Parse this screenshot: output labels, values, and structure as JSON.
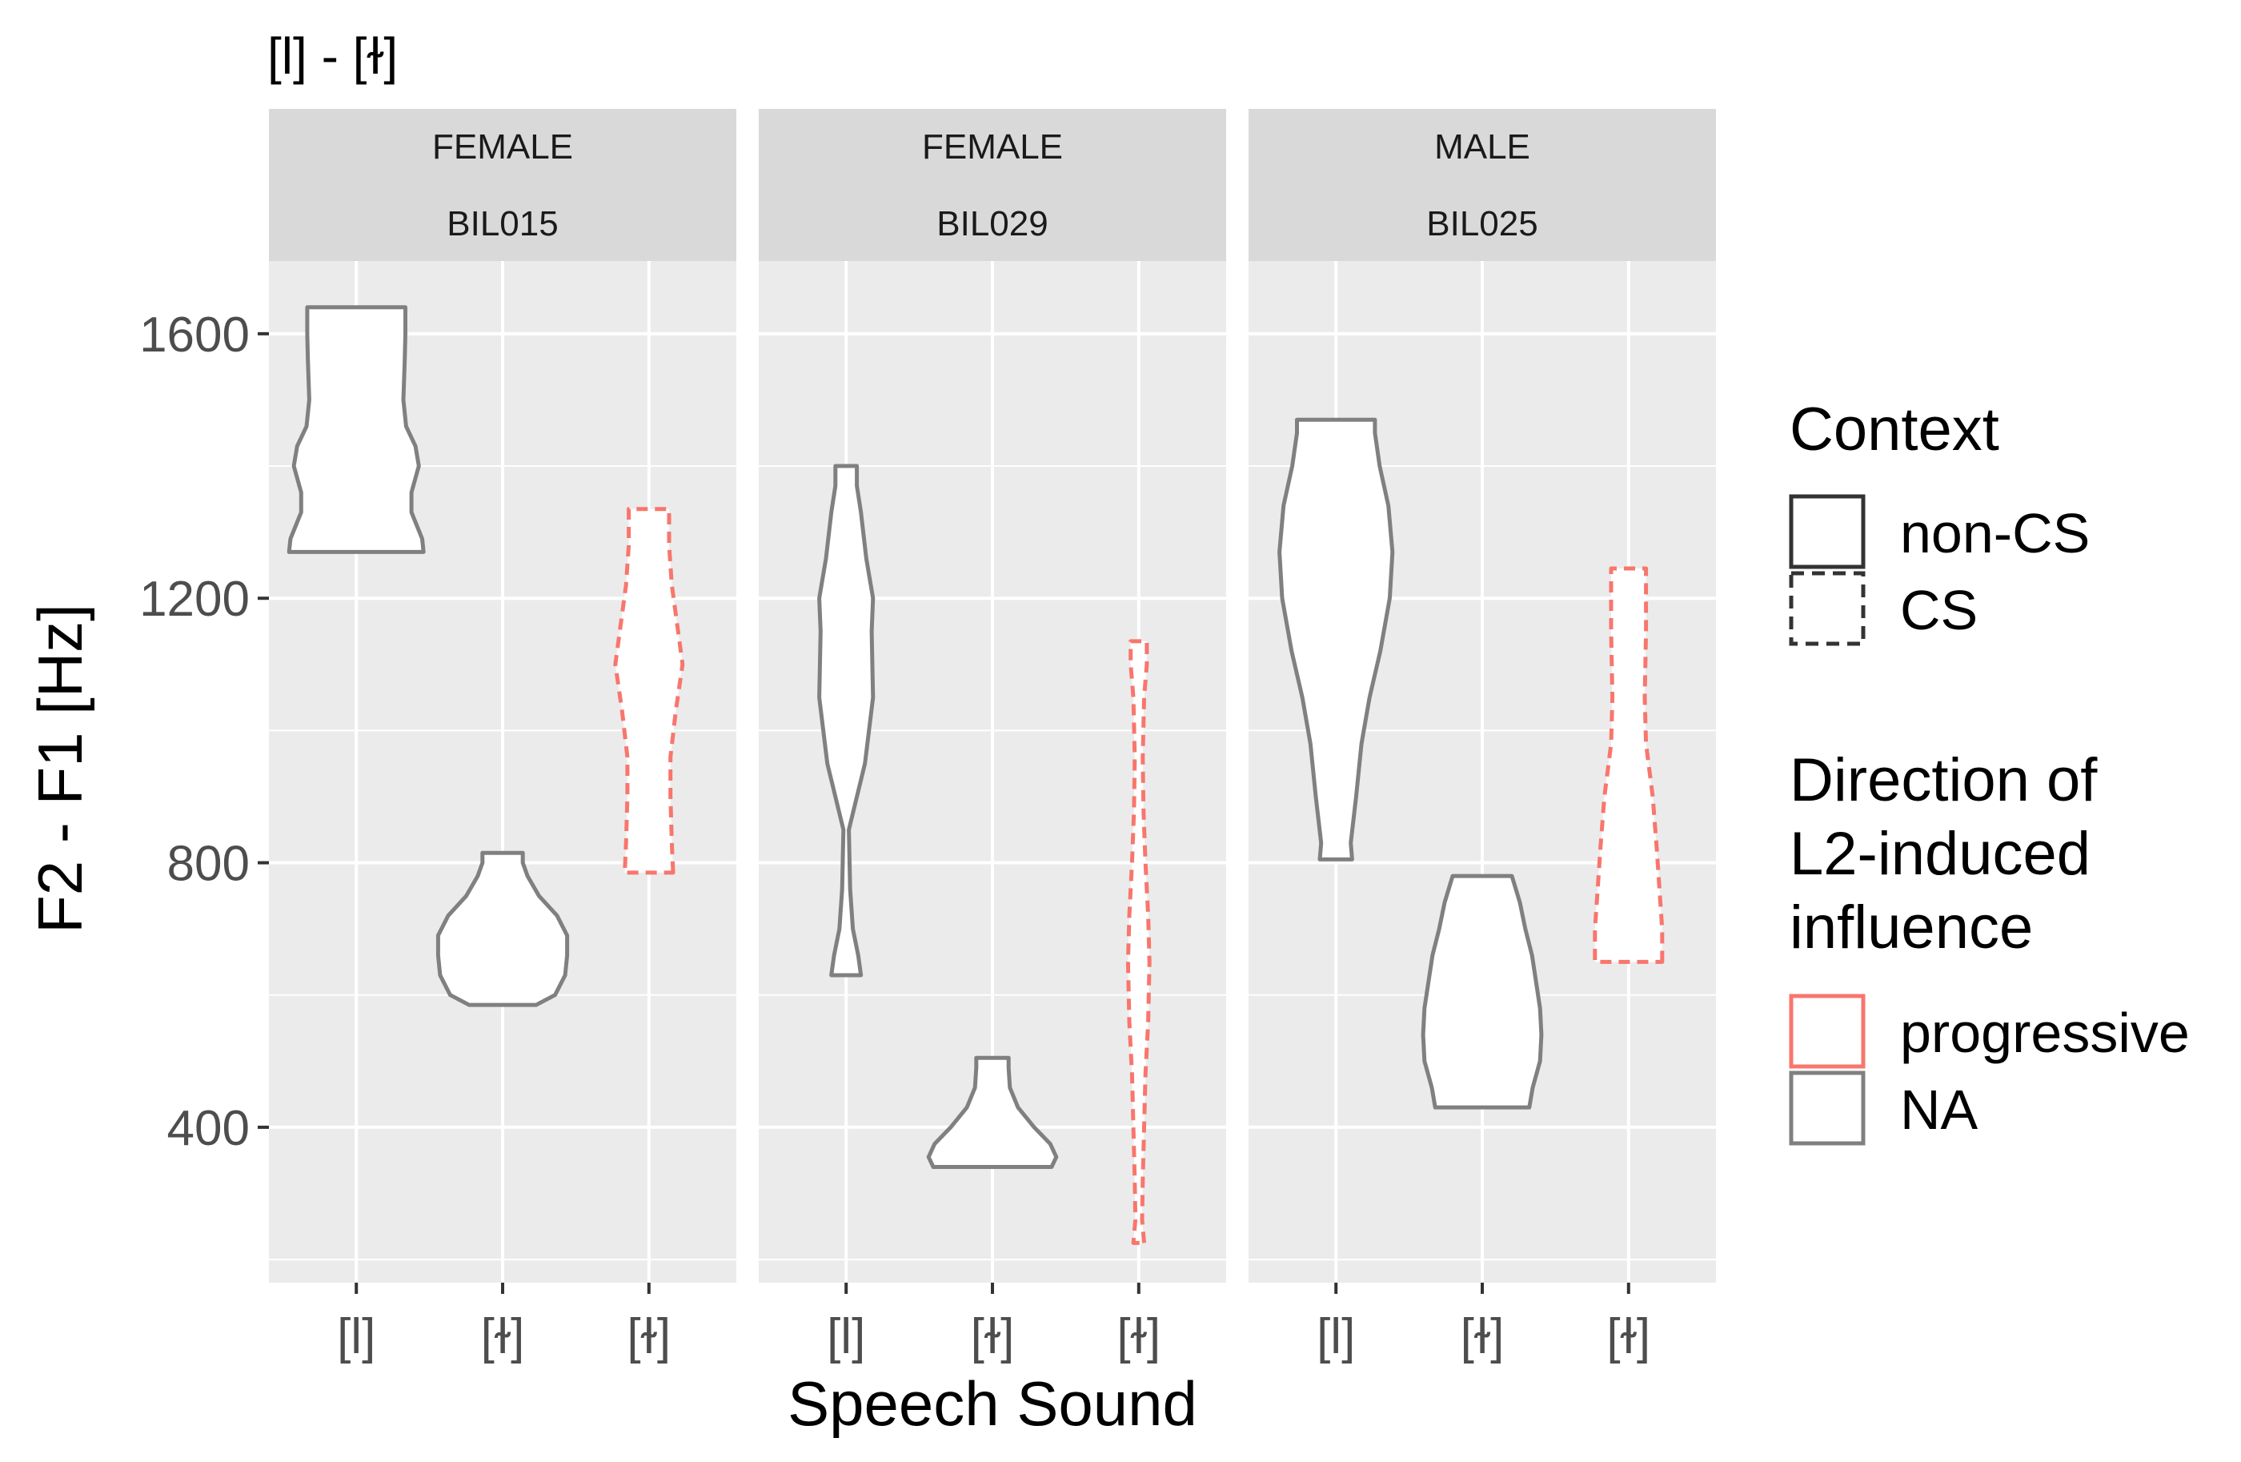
{
  "chart_data": {
    "type": "violin",
    "title": "[l] - [ɫ]",
    "xlabel": "Speech Sound",
    "ylabel": "F2 - F1 [Hz]",
    "ylim": [
      165,
      1710
    ],
    "yticks": [
      400,
      800,
      1200,
      1600
    ],
    "categories": [
      "[l]",
      "[ɫ]",
      "[ɫ]"
    ],
    "legend": {
      "context_title": "Context",
      "context": [
        {
          "label": "non-CS",
          "dash": "solid"
        },
        {
          "label": "CS",
          "dash": "dashed"
        }
      ],
      "direction_title": [
        "Direction of",
        "L2-induced",
        "influence"
      ],
      "direction": [
        {
          "label": "progressive",
          "color": "#F8766D"
        },
        {
          "label": "NA",
          "color": "#808080"
        }
      ]
    },
    "panels": [
      {
        "sex": "FEMALE",
        "speaker": "BIL015",
        "violins": [
          {
            "slot": 0,
            "context": "non-CS",
            "direction": "NA",
            "min": 1270,
            "max": 1640,
            "profile": [
              [
                1270,
                1.0
              ],
              [
                1290,
                0.98
              ],
              [
                1330,
                0.82
              ],
              [
                1360,
                0.82
              ],
              [
                1400,
                0.93
              ],
              [
                1430,
                0.88
              ],
              [
                1460,
                0.74
              ],
              [
                1500,
                0.7
              ],
              [
                1560,
                0.72
              ],
              [
                1600,
                0.73
              ],
              [
                1640,
                0.73
              ]
            ]
          },
          {
            "slot": 1,
            "context": "non-CS",
            "direction": "NA",
            "min": 585,
            "max": 815,
            "profile": [
              [
                585,
                0.5
              ],
              [
                600,
                0.78
              ],
              [
                630,
                0.93
              ],
              [
                660,
                0.96
              ],
              [
                690,
                0.96
              ],
              [
                720,
                0.81
              ],
              [
                750,
                0.54
              ],
              [
                780,
                0.37
              ],
              [
                800,
                0.3
              ],
              [
                815,
                0.3
              ]
            ]
          },
          {
            "slot": 2,
            "context": "CS",
            "direction": "progressive",
            "min": 785,
            "max": 1335,
            "profile": [
              [
                785,
                0.36
              ],
              [
                830,
                0.34
              ],
              [
                900,
                0.32
              ],
              [
                960,
                0.32
              ],
              [
                1030,
                0.4
              ],
              [
                1100,
                0.5
              ],
              [
                1160,
                0.42
              ],
              [
                1220,
                0.34
              ],
              [
                1280,
                0.3
              ],
              [
                1335,
                0.3
              ]
            ]
          }
        ]
      },
      {
        "sex": "FEMALE",
        "speaker": "BIL029",
        "violins": [
          {
            "slot": 0,
            "context": "non-CS",
            "direction": "NA",
            "min": 630,
            "max": 1400,
            "profile": [
              [
                630,
                0.22
              ],
              [
                660,
                0.18
              ],
              [
                700,
                0.1
              ],
              [
                760,
                0.06
              ],
              [
                850,
                0.04
              ],
              [
                950,
                0.28
              ],
              [
                1050,
                0.4
              ],
              [
                1150,
                0.38
              ],
              [
                1200,
                0.4
              ],
              [
                1260,
                0.3
              ],
              [
                1330,
                0.22
              ],
              [
                1370,
                0.16
              ],
              [
                1400,
                0.16
              ]
            ]
          },
          {
            "slot": 1,
            "context": "non-CS",
            "direction": "NA",
            "min": 340,
            "max": 505,
            "profile": [
              [
                340,
                0.88
              ],
              [
                355,
                0.95
              ],
              [
                375,
                0.86
              ],
              [
                400,
                0.62
              ],
              [
                430,
                0.38
              ],
              [
                460,
                0.26
              ],
              [
                490,
                0.24
              ],
              [
                505,
                0.24
              ]
            ]
          },
          {
            "slot": 2,
            "context": "CS",
            "direction": "progressive",
            "min": 225,
            "max": 1135,
            "profile": [
              [
                225,
                0.08
              ],
              [
                260,
                0.05
              ],
              [
                320,
                0.06
              ],
              [
                400,
                0.08
              ],
              [
                480,
                0.1
              ],
              [
                560,
                0.14
              ],
              [
                650,
                0.16
              ],
              [
                720,
                0.14
              ],
              [
                800,
                0.1
              ],
              [
                880,
                0.07
              ],
              [
                960,
                0.06
              ],
              [
                1050,
                0.08
              ],
              [
                1100,
                0.12
              ],
              [
                1135,
                0.12
              ]
            ]
          }
        ]
      },
      {
        "sex": "MALE",
        "speaker": "BIL025",
        "violins": [
          {
            "slot": 0,
            "context": "non-CS",
            "direction": "NA",
            "min": 805,
            "max": 1470,
            "profile": [
              [
                805,
                0.24
              ],
              [
                830,
                0.22
              ],
              [
                900,
                0.3
              ],
              [
                980,
                0.38
              ],
              [
                1050,
                0.5
              ],
              [
                1120,
                0.66
              ],
              [
                1200,
                0.8
              ],
              [
                1270,
                0.84
              ],
              [
                1340,
                0.78
              ],
              [
                1400,
                0.65
              ],
              [
                1450,
                0.58
              ],
              [
                1470,
                0.58
              ]
            ]
          },
          {
            "slot": 1,
            "context": "non-CS",
            "direction": "NA",
            "min": 430,
            "max": 780,
            "profile": [
              [
                430,
                0.7
              ],
              [
                460,
                0.75
              ],
              [
                500,
                0.86
              ],
              [
                540,
                0.88
              ],
              [
                580,
                0.86
              ],
              [
                620,
                0.8
              ],
              [
                660,
                0.74
              ],
              [
                700,
                0.64
              ],
              [
                740,
                0.56
              ],
              [
                760,
                0.5
              ],
              [
                780,
                0.44
              ]
            ]
          },
          {
            "slot": 2,
            "context": "CS",
            "direction": "progressive",
            "min": 650,
            "max": 1245,
            "profile": [
              [
                650,
                0.5
              ],
              [
                700,
                0.5
              ],
              [
                760,
                0.46
              ],
              [
                820,
                0.42
              ],
              [
                900,
                0.36
              ],
              [
                980,
                0.26
              ],
              [
                1050,
                0.24
              ],
              [
                1150,
                0.26
              ],
              [
                1245,
                0.26
              ]
            ]
          }
        ]
      }
    ]
  }
}
